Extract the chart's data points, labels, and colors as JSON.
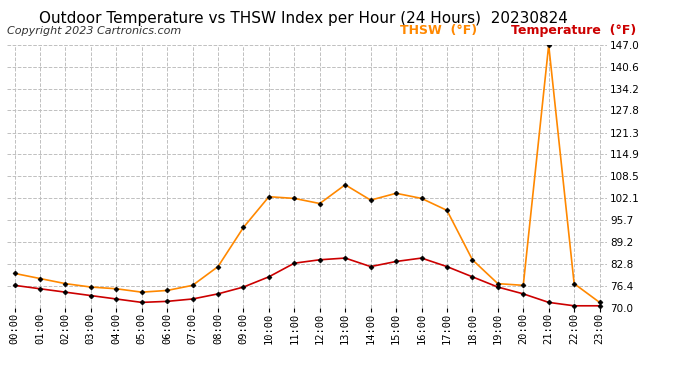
{
  "title": "Outdoor Temperature vs THSW Index per Hour (24 Hours)  20230824",
  "copyright": "Copyright 2023 Cartronics.com",
  "hours": [
    "00:00",
    "01:00",
    "02:00",
    "03:00",
    "04:00",
    "05:00",
    "06:00",
    "07:00",
    "08:00",
    "09:00",
    "10:00",
    "11:00",
    "12:00",
    "13:00",
    "14:00",
    "15:00",
    "16:00",
    "17:00",
    "18:00",
    "19:00",
    "20:00",
    "21:00",
    "22:00",
    "23:00"
  ],
  "temperature": [
    76.5,
    75.5,
    74.5,
    73.5,
    72.5,
    71.5,
    71.8,
    72.5,
    74.0,
    76.0,
    79.0,
    83.0,
    84.0,
    84.5,
    82.0,
    83.5,
    84.5,
    82.0,
    79.0,
    76.0,
    74.0,
    71.5,
    70.5,
    70.5
  ],
  "thsw": [
    80.0,
    78.5,
    77.0,
    76.0,
    75.5,
    74.5,
    75.0,
    76.5,
    82.0,
    93.5,
    102.5,
    102.0,
    100.5,
    106.0,
    101.5,
    103.5,
    102.0,
    98.5,
    84.0,
    77.0,
    76.5,
    147.0,
    77.0,
    71.5
  ],
  "ylim_min": 70.0,
  "ylim_max": 147.0,
  "yticks": [
    70.0,
    76.4,
    82.8,
    89.2,
    95.7,
    102.1,
    108.5,
    114.9,
    121.3,
    127.8,
    134.2,
    140.6,
    147.0
  ],
  "ytick_labels": [
    "70.0",
    "76.4",
    "82.8",
    "89.2",
    "95.7",
    "102.1",
    "108.5",
    "114.9",
    "121.3",
    "127.8",
    "134.2",
    "140.6",
    "147.0"
  ],
  "temp_color": "#cc0000",
  "thsw_color": "#ff8800",
  "legend_thsw_label": "THSW  (°F)",
  "legend_temp_label": "Temperature  (°F)",
  "grid_color": "#c0c0c0",
  "background_color": "#ffffff",
  "title_fontsize": 11,
  "tick_fontsize": 7.5,
  "legend_fontsize": 9,
  "copyright_fontsize": 8
}
